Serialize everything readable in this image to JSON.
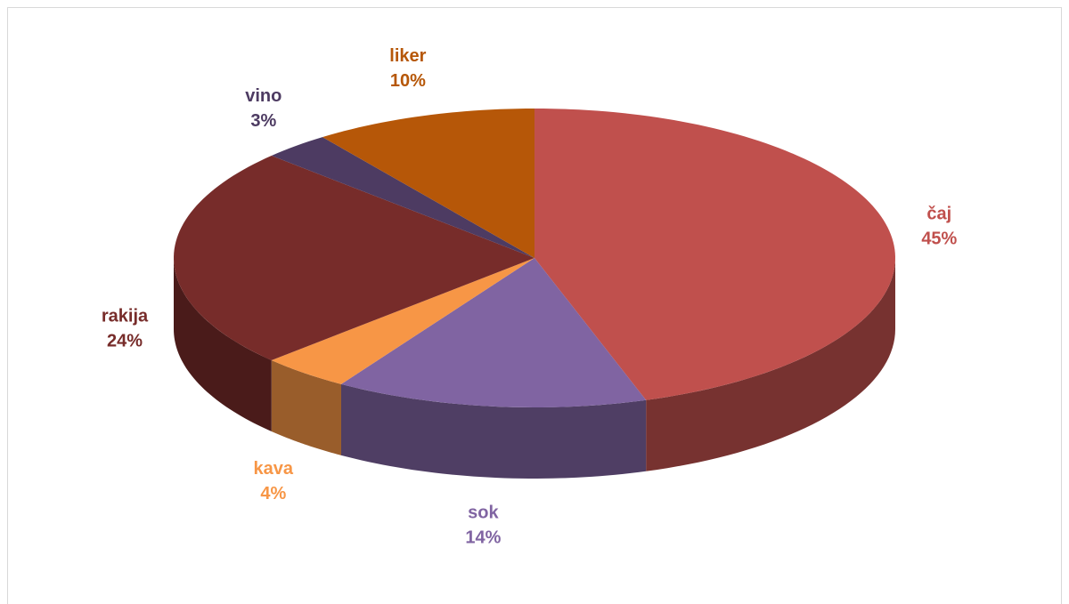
{
  "chart_data": {
    "type": "pie3d",
    "categories": [
      "čaj",
      "sok",
      "kava",
      "rakija",
      "vino",
      "liker"
    ],
    "values": [
      45,
      14,
      4,
      24,
      3,
      10
    ],
    "value_labels": [
      "45%",
      "14%",
      "4%",
      "24%",
      "3%",
      "10%"
    ],
    "colors": [
      "#c0504d",
      "#8064a2",
      "#f79646",
      "#772c2a",
      "#4d3b62",
      "#b65708"
    ]
  }
}
